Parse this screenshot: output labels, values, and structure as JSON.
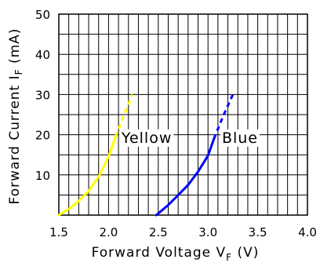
{
  "chart_data": {
    "type": "line",
    "title": "",
    "xlabel": "Forward Voltage V",
    "xlabel_sub": "F",
    "xlabel_unit": " (V)",
    "ylabel": "Forward Current I",
    "ylabel_sub": "F",
    "ylabel_unit": " (mA)",
    "xlim": [
      1.5,
      4.0
    ],
    "ylim": [
      0,
      50
    ],
    "x_ticks": [
      1.5,
      2.0,
      2.5,
      3.0,
      3.5,
      4.0
    ],
    "x_tick_labels": [
      "1.5",
      "2.0",
      "2.5",
      "3.0",
      "3.5",
      "4.0"
    ],
    "y_ticks": [
      10,
      20,
      30,
      40,
      50
    ],
    "y_tick_labels": [
      "10",
      "20",
      "30",
      "40",
      "50"
    ],
    "grid": true,
    "series": [
      {
        "name": "Yellow",
        "color": "#ffff00",
        "label_at": [
          2.13,
          18
        ],
        "solid": [
          [
            1.5,
            0.0
          ],
          [
            1.6,
            1.5
          ],
          [
            1.7,
            3.5
          ],
          [
            1.8,
            6.0
          ],
          [
            1.9,
            9.5
          ],
          [
            2.0,
            14.5
          ],
          [
            2.07,
            19.5
          ]
        ],
        "dashed": [
          [
            2.07,
            19.5
          ],
          [
            2.15,
            24.5
          ],
          [
            2.24,
            30.0
          ]
        ]
      },
      {
        "name": "Blue",
        "color": "#0000ff",
        "label_at": [
          3.14,
          18
        ],
        "solid": [
          [
            2.48,
            0.0
          ],
          [
            2.6,
            2.5
          ],
          [
            2.7,
            5.0
          ],
          [
            2.8,
            7.5
          ],
          [
            2.9,
            10.8
          ],
          [
            3.0,
            14.8
          ],
          [
            3.06,
            19.0
          ]
        ],
        "dashed": [
          [
            3.06,
            19.0
          ],
          [
            3.15,
            24.5
          ],
          [
            3.25,
            30.0
          ]
        ]
      }
    ]
  }
}
